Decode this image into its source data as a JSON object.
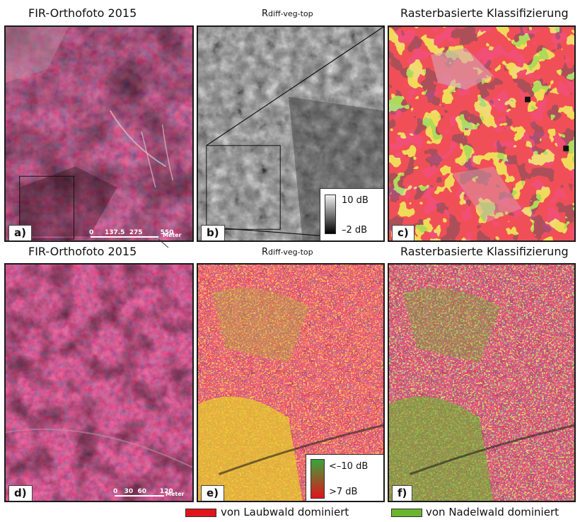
{
  "titles": {
    "a": "FIR-Orthofoto 2015",
    "b_main": "R",
    "b_sub": "diff-veg-top",
    "c": "Rasterbasierte Klassifizierung",
    "d": "FIR-Orthofoto 2015",
    "e_main": "R",
    "e_sub": "diff-veg-top",
    "f": "Rasterbasierte Klassifizierung"
  },
  "panel_labels": {
    "a": "a)",
    "b": "b)",
    "c": "c)",
    "d": "d)",
    "e": "e)",
    "f": "f)"
  },
  "legend_b": {
    "max": "10 dB",
    "min": "–2 dB"
  },
  "legend_e": {
    "top": "<–10 dB",
    "bottom": ">7 dB"
  },
  "scalebar_a": {
    "ticks": [
      "0",
      "137.5",
      "275",
      "550"
    ],
    "unit": "Meter"
  },
  "scalebar_d": {
    "ticks": [
      "0",
      "30",
      "60",
      "120"
    ],
    "unit": "Meter"
  },
  "bottom_legend": {
    "laubwald": "von Laubwald dominiert",
    "nadelwald": "von Nadelwald dominiert"
  },
  "colors": {
    "laubwald": "#e0141a",
    "nadelwald": "#6ab42e",
    "fir_red": "#8a2340",
    "border": "#1a1a1a"
  }
}
